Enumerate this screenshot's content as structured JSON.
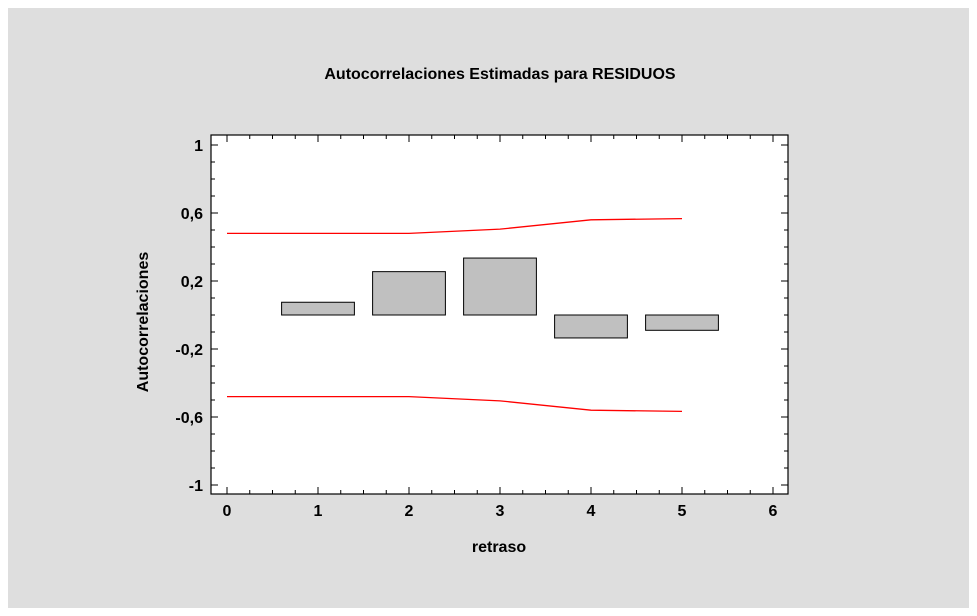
{
  "chart_data": {
    "type": "bar",
    "title": "Autocorrelaciones Estimadas para RESIDUOS",
    "xlabel": "retraso",
    "ylabel": "Autocorrelaciones",
    "x": [
      1,
      2,
      3,
      4,
      5
    ],
    "values": [
      0.075,
      0.255,
      0.335,
      -0.135,
      -0.09
    ],
    "xlim": [
      0,
      6
    ],
    "ylim": [
      -1,
      1
    ],
    "xticks": [
      "0",
      "1",
      "2",
      "3",
      "4",
      "5",
      "6"
    ],
    "yticks": [
      "-1",
      "-0,6",
      "-0,2",
      "0,2",
      "0,6",
      "1"
    ],
    "grid": false,
    "bar_color": "#c0c0c0",
    "limit_color": "#ff0000",
    "limits": {
      "x": [
        0,
        1,
        2,
        3,
        4,
        5
      ],
      "upper": [
        0.48,
        0.48,
        0.48,
        0.505,
        0.56,
        0.567
      ],
      "lower": [
        -0.48,
        -0.48,
        -0.48,
        -0.505,
        -0.56,
        -0.567
      ]
    }
  }
}
